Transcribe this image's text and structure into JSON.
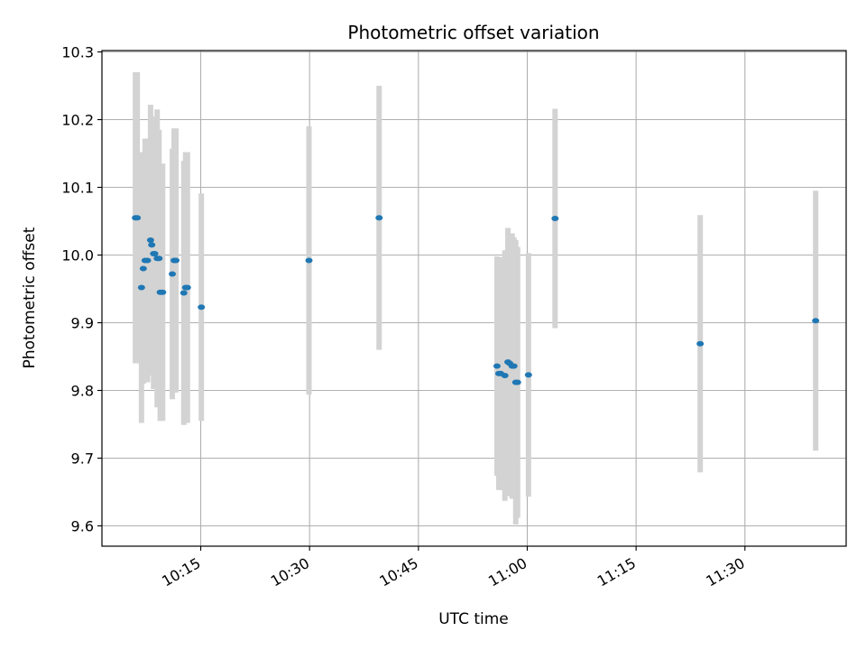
{
  "chart_data": {
    "type": "scatter",
    "title": "Photometric offset variation",
    "xlabel": "UTC time",
    "ylabel": "Photometric offset",
    "x_axis": "time",
    "xlim": [
      "10:01:23",
      "11:43:57"
    ],
    "ylim": [
      9.57,
      10.302
    ],
    "x_ticks": [
      "10:15",
      "10:30",
      "10:45",
      "11:00",
      "11:15",
      "11:30"
    ],
    "y_ticks": [
      "9.6",
      "9.7",
      "9.8",
      "9.9",
      "10.0",
      "10.1",
      "10.2",
      "10.3"
    ],
    "grid": true,
    "legend": "none",
    "marker_color": "#1f77b4",
    "errorbar_color": "#d3d3d3",
    "series": [
      {
        "points": [
          {
            "x": "10:06:00",
            "y": 10.055,
            "yerr": 0.215
          },
          {
            "x": "10:06:15",
            "y": 10.055,
            "yerr": 0.215
          },
          {
            "x": "10:06:50",
            "y": 9.952,
            "yerr": 0.2
          },
          {
            "x": "10:07:05",
            "y": 9.98,
            "yerr": 0.17
          },
          {
            "x": "10:07:20",
            "y": 9.992,
            "yerr": 0.18
          },
          {
            "x": "10:07:40",
            "y": 9.992,
            "yerr": 0.18
          },
          {
            "x": "10:08:05",
            "y": 10.022,
            "yerr": 0.2
          },
          {
            "x": "10:08:15",
            "y": 10.015,
            "yerr": 0.19
          },
          {
            "x": "10:08:30",
            "y": 10.002,
            "yerr": 0.2
          },
          {
            "x": "10:08:40",
            "y": 10.002,
            "yerr": 0.2
          },
          {
            "x": "10:09:00",
            "y": 9.995,
            "yerr": 0.22
          },
          {
            "x": "10:09:15",
            "y": 9.995,
            "yerr": 0.19
          },
          {
            "x": "10:09:25",
            "y": 9.945,
            "yerr": 0.19
          },
          {
            "x": "10:09:45",
            "y": 9.945,
            "yerr": 0.19
          },
          {
            "x": "10:11:05",
            "y": 9.972,
            "yerr": 0.185
          },
          {
            "x": "10:11:20",
            "y": 9.992,
            "yerr": 0.195
          },
          {
            "x": "10:11:35",
            "y": 9.992,
            "yerr": 0.195
          },
          {
            "x": "10:12:40",
            "y": 9.944,
            "yerr": 0.195
          },
          {
            "x": "10:12:55",
            "y": 9.952,
            "yerr": 0.2
          },
          {
            "x": "10:13:10",
            "y": 9.952,
            "yerr": 0.2
          },
          {
            "x": "10:15:05",
            "y": 9.923,
            "yerr": 0.168
          },
          {
            "x": "10:29:55",
            "y": 9.992,
            "yerr": 0.198
          },
          {
            "x": "10:39:35",
            "y": 10.055,
            "yerr": 0.195
          },
          {
            "x": "10:55:50",
            "y": 9.836,
            "yerr": 0.162
          },
          {
            "x": "10:56:05",
            "y": 9.825,
            "yerr": 0.172
          },
          {
            "x": "10:56:20",
            "y": 9.825,
            "yerr": 0.172
          },
          {
            "x": "10:56:55",
            "y": 9.822,
            "yerr": 0.185
          },
          {
            "x": "10:57:20",
            "y": 9.842,
            "yerr": 0.198
          },
          {
            "x": "10:57:35",
            "y": 9.84,
            "yerr": 0.19
          },
          {
            "x": "10:57:55",
            "y": 9.836,
            "yerr": 0.196
          },
          {
            "x": "10:58:10",
            "y": 9.836,
            "yerr": 0.19
          },
          {
            "x": "10:58:25",
            "y": 9.812,
            "yerr": 0.21
          },
          {
            "x": "10:58:40",
            "y": 9.812,
            "yerr": 0.2
          },
          {
            "x": "11:00:10",
            "y": 9.823,
            "yerr": 0.18
          },
          {
            "x": "11:03:50",
            "y": 10.054,
            "yerr": 0.162
          },
          {
            "x": "11:23:50",
            "y": 9.869,
            "yerr": 0.19
          },
          {
            "x": "11:39:45",
            "y": 9.903,
            "yerr": 0.192
          }
        ]
      }
    ]
  }
}
